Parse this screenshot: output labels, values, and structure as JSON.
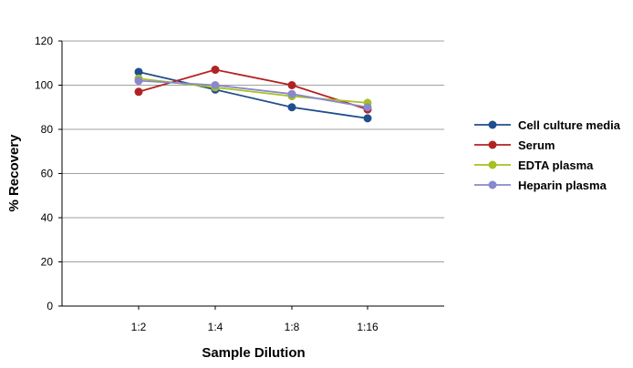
{
  "chart_data": {
    "type": "line",
    "title": "",
    "xlabel": "Sample Dilution",
    "ylabel": "% Recovery",
    "categories": [
      "1:2",
      "1:4",
      "1:8",
      "1:16"
    ],
    "ylim": [
      0,
      120
    ],
    "yticks": [
      0,
      20,
      40,
      60,
      80,
      100,
      120
    ],
    "grid": true,
    "legend_position": "right",
    "series": [
      {
        "name": "Cell culture media",
        "color": "#1f4e8c",
        "values": [
          106,
          98,
          90,
          85
        ]
      },
      {
        "name": "Serum",
        "color": "#b22222",
        "values": [
          97,
          107,
          100,
          89
        ]
      },
      {
        "name": "EDTA plasma",
        "color": "#a8c020",
        "values": [
          103,
          99,
          95,
          92
        ]
      },
      {
        "name": "Heparin plasma",
        "color": "#8888cc",
        "values": [
          102,
          100,
          96,
          90
        ]
      }
    ]
  }
}
